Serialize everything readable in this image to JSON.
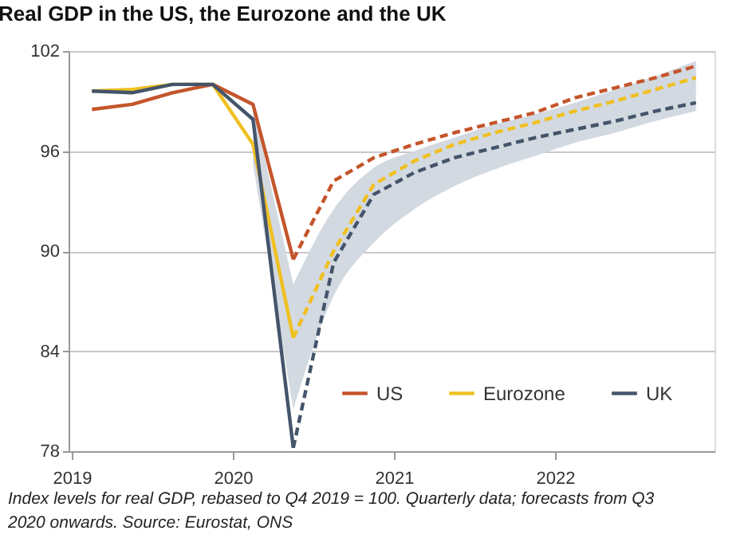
{
  "chart_data": {
    "type": "line",
    "title": "Real GDP in the US, the Eurozone and the UK",
    "annotations": [
      "Index levels for real GDP, rebased to Q4 2019 = 100. Quarterly data; forecasts from Q3 2020 onwards. Source: Eurostat, ONS"
    ],
    "series": [
      {
        "name": "US",
        "color": "#c4552b",
        "line_style": "solid",
        "x": [
          2019.125,
          2019.375,
          2019.625,
          2019.875,
          2020.125,
          2020.375
        ],
        "values": [
          98.5,
          98.8,
          99.5,
          100.0,
          98.8,
          89.5
        ]
      },
      {
        "name": "Eurozone",
        "color": "#f0c020",
        "line_style": "solid",
        "x": [
          2019.125,
          2019.375,
          2019.625,
          2019.875,
          2020.125,
          2020.375
        ],
        "values": [
          99.6,
          99.7,
          100.0,
          100.0,
          96.4,
          84.8
        ],
        "lower": [
          null,
          null,
          null,
          null,
          95.2,
          80.5
        ],
        "upper": [
          null,
          null,
          null,
          null,
          98.7,
          88.0
        ]
      },
      {
        "name": "UK",
        "color": "#44546a",
        "line_style": "solid",
        "x": [
          2019.125,
          2019.375,
          2019.625,
          2019.875,
          2020.125,
          2020.375
        ],
        "values": [
          99.6,
          99.5,
          100.0,
          100.0,
          97.9,
          78.2
        ]
      },
      {
        "color": "#c4552b",
        "line_style": "dashed",
        "x": [
          2020.375,
          2020.625,
          2020.875,
          2021.125,
          2021.375,
          2021.625,
          2021.875,
          2022.125,
          2022.375,
          2022.625,
          2022.875
        ],
        "values": [
          89.5,
          94.2,
          95.6,
          96.4,
          97.1,
          97.7,
          98.3,
          99.2,
          99.8,
          100.4,
          101.1
        ]
      },
      {
        "color": "#f0c020",
        "line_style": "dashed",
        "x": [
          2020.375,
          2020.625,
          2020.875,
          2021.125,
          2021.375,
          2021.625,
          2021.875,
          2022.125,
          2022.375,
          2022.625,
          2022.875
        ],
        "values": [
          84.8,
          90.0,
          94.0,
          95.4,
          96.4,
          97.1,
          97.7,
          98.4,
          99.0,
          99.7,
          100.4
        ],
        "lower": [
          80.5,
          87.3,
          90.5,
          92.5,
          93.9,
          94.9,
          95.7,
          96.5,
          97.1,
          97.8,
          98.4
        ],
        "upper": [
          88.0,
          92.5,
          95.0,
          96.0,
          96.8,
          97.6,
          98.2,
          98.9,
          99.7,
          100.5,
          101.4
        ]
      },
      {
        "color": "#44546a",
        "line_style": "dashed",
        "x": [
          2020.375,
          2020.625,
          2020.875,
          2021.125,
          2021.375,
          2021.625,
          2021.875,
          2022.125,
          2022.375,
          2022.625,
          2022.875
        ],
        "values": [
          78.2,
          89.3,
          93.4,
          94.7,
          95.6,
          96.2,
          96.8,
          97.3,
          97.8,
          98.4,
          98.9
        ]
      }
    ],
    "xlim": [
      2018.98,
      2022.99
    ],
    "xticks": [
      2019,
      2020,
      2021,
      2022
    ],
    "ylim": [
      78,
      102
    ],
    "yticks": [
      78,
      84,
      90,
      96,
      102
    ],
    "grid": "y",
    "legend": "bottom right",
    "marker": "none"
  }
}
